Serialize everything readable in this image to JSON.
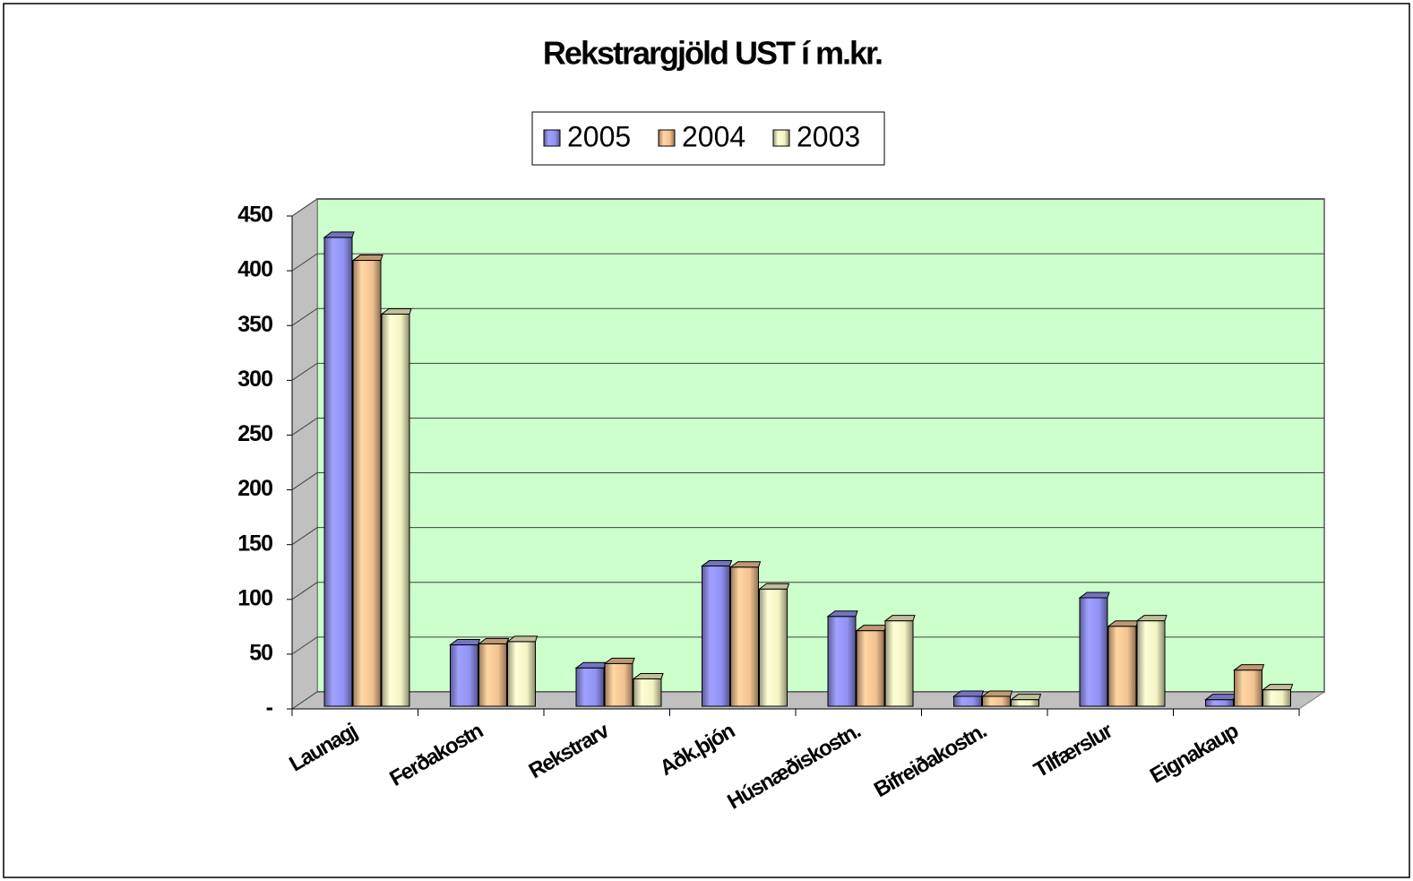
{
  "chart_data": {
    "type": "bar3d",
    "title": "Rekstrargjöld UST í m.kr.",
    "categories": [
      "Launagj",
      "Ferðakostn",
      "Rekstrarv",
      "Aðk.þjón",
      "Húsnæðiskostn.",
      "Bifreiðakostn.",
      "Tilfærslur",
      "Eignakaup"
    ],
    "series": [
      {
        "name": "2005",
        "color": "#9999ff",
        "values": [
          428,
          56,
          35,
          128,
          82,
          9,
          99,
          6
        ]
      },
      {
        "name": "2004",
        "color": "#ffcc99",
        "values": [
          407,
          57,
          39,
          127,
          69,
          9,
          73,
          33
        ]
      },
      {
        "name": "2003",
        "color": "#ffffcc",
        "values": [
          358,
          59,
          25,
          107,
          78,
          6,
          78,
          15
        ]
      }
    ],
    "ylim": [
      0,
      450
    ],
    "yticks": [
      {
        "value": 0,
        "label": "-"
      },
      50,
      100,
      150,
      200,
      250,
      300,
      350,
      400,
      450
    ],
    "grid": true,
    "legend": "top",
    "wall_color": "#ccffcc"
  }
}
